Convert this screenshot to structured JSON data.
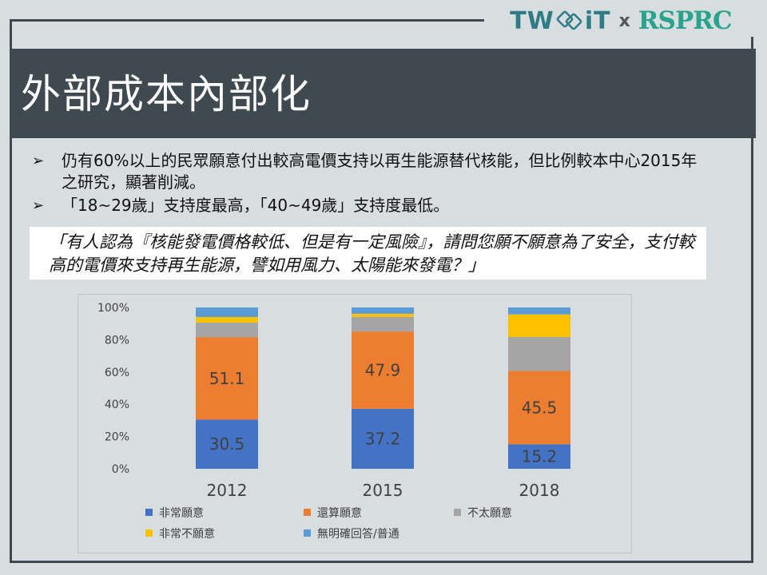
{
  "logo": {
    "left": "TW",
    "mid": "iT",
    "sep": "x",
    "right": "RSPRC"
  },
  "slide": {
    "title": "外部成本內部化",
    "bullets": [
      "仍有60%以上的民眾願意付出較高電價支持以再生能源替代核能，但比例較本中心2015年之研究，顯著削減。",
      "「18~29歲」支持度最高，「40~49歲」支持度最低。"
    ],
    "question": "「有人認為『核能發電價格較低、但是有一定風險』，請問您願不願意為了安全，支付較高的電價來支持再生能源，譬如用風力、太陽能來發電？」"
  },
  "colors": {
    "header": "#3f4a50",
    "background": "#d8dde0",
    "very_willing": "#4472c4",
    "somewhat_willing": "#ed7d31",
    "not_very_willing": "#a5a5a5",
    "very_unwilling": "#ffc000",
    "no_answer": "#5b9bd5"
  },
  "chart_data": {
    "type": "bar",
    "stacked": "percent",
    "categories": [
      "2012",
      "2015",
      "2018"
    ],
    "series": [
      {
        "name": "非常願意",
        "values": [
          30.5,
          37.2,
          15.2
        ],
        "color": "#4472c4",
        "labels": [
          "30.5",
          "37.2",
          "15.2"
        ]
      },
      {
        "name": "還算願意",
        "values": [
          51.1,
          47.9,
          45.5
        ],
        "color": "#ed7d31",
        "labels": [
          "51.1",
          "47.9",
          "45.5"
        ]
      },
      {
        "name": "不太願意",
        "values": [
          9.0,
          9.0,
          21.0
        ],
        "color": "#a5a5a5"
      },
      {
        "name": "非常不願意",
        "values": [
          3.5,
          2.0,
          14.0
        ],
        "color": "#ffc000"
      },
      {
        "name": "無明確回答/普通",
        "values": [
          5.9,
          3.9,
          4.3
        ],
        "color": "#5b9bd5"
      }
    ],
    "y_ticks": [
      "100%",
      "80%",
      "60%",
      "40%",
      "20%",
      "0%"
    ],
    "ylim": [
      0,
      100
    ],
    "grid": false,
    "legend": "bottom"
  }
}
